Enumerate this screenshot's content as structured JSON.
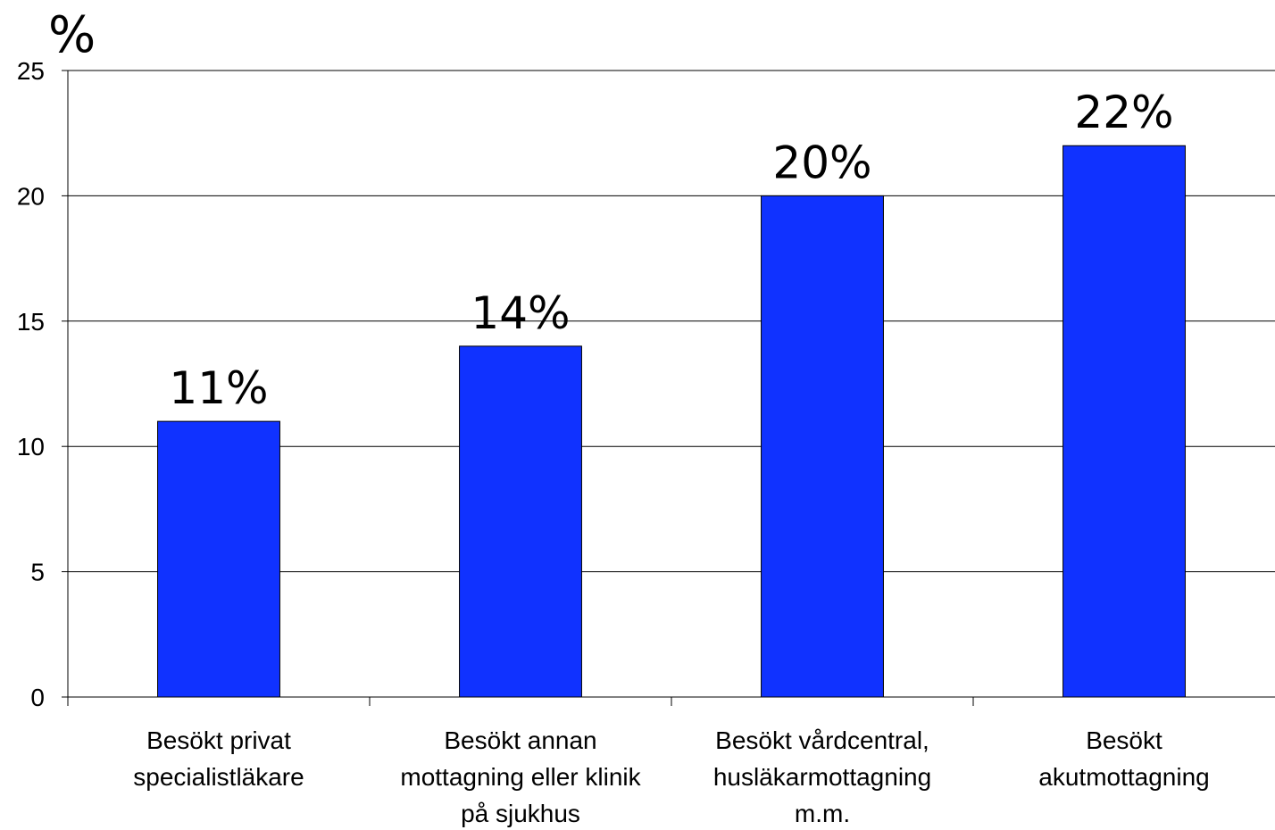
{
  "chart_data": {
    "type": "bar",
    "title": "",
    "xlabel": "",
    "ylabel": "%",
    "ylim": [
      0,
      25
    ],
    "yticks": [
      0,
      5,
      10,
      15,
      20,
      25
    ],
    "grid": true,
    "legend": "none",
    "bar_color": "#1032ff",
    "categories": [
      [
        "Besökt privat",
        "specialistläkare"
      ],
      [
        "Besökt annan",
        "mottagning eller klinik",
        "på sjukhus"
      ],
      [
        "Besökt vårdcentral,",
        "husläkarmottagning",
        "m.m."
      ],
      [
        "Besökt",
        "akutmottagning"
      ]
    ],
    "values": [
      11,
      14,
      20,
      22
    ],
    "data_labels": [
      "11%",
      "14%",
      "20%",
      "22%"
    ]
  }
}
